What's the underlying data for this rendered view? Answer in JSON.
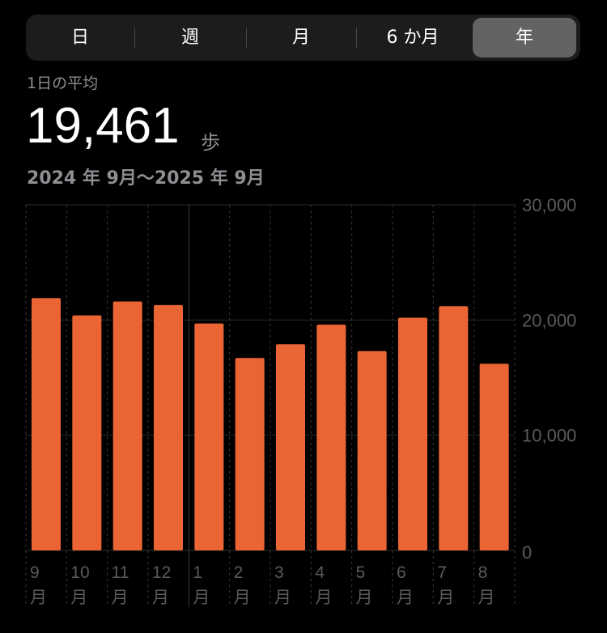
{
  "segments": [
    {
      "label": "日"
    },
    {
      "label": "週"
    },
    {
      "label": "月"
    },
    {
      "label": "6 か月"
    },
    {
      "label": "年",
      "selected": true
    }
  ],
  "summary": {
    "label": "1日の平均",
    "value": "19,461",
    "unit": "歩",
    "range": "2024 年 9月〜2025 年 9月"
  },
  "colors": {
    "bar": "#eb6534",
    "selected_segment": "#636366"
  },
  "chart_data": {
    "type": "bar",
    "categories": [
      "9",
      "10",
      "11",
      "12",
      "1",
      "2",
      "3",
      "4",
      "5",
      "6",
      "7",
      "8"
    ],
    "category_suffix": "月",
    "values": [
      21900,
      20400,
      21600,
      21300,
      19700,
      16700,
      17900,
      19600,
      17300,
      20200,
      21200,
      16200
    ],
    "ylim": [
      0,
      30000
    ],
    "yticks": [
      "0",
      "10,000",
      "20,000",
      "30,000"
    ],
    "grid": true,
    "ylabel_position": "right"
  }
}
